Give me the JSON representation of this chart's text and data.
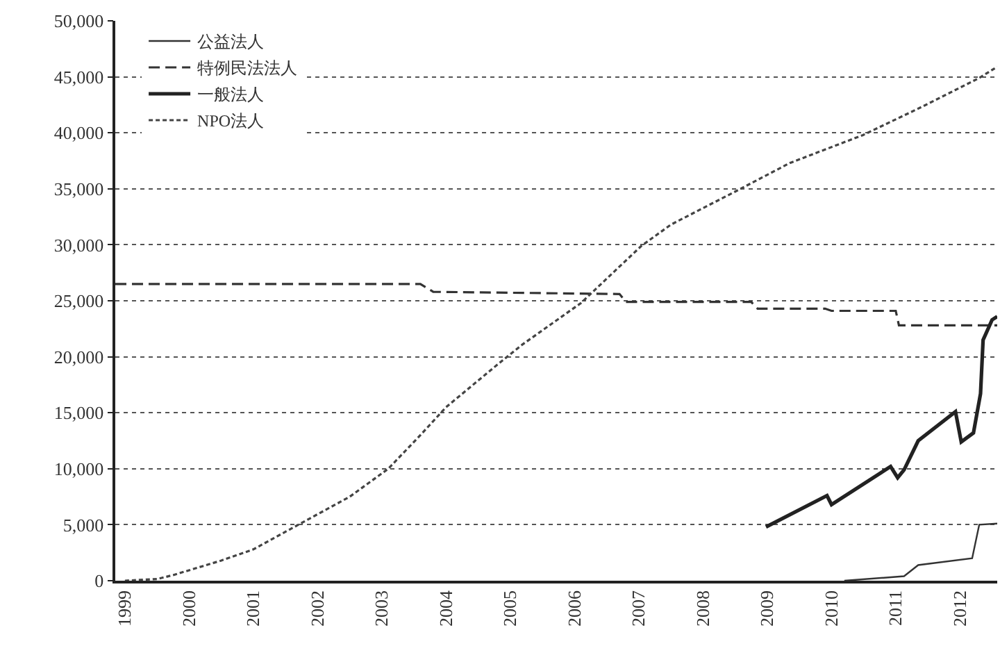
{
  "chart_data": {
    "type": "line",
    "xlim": [
      1998.85,
      2012.58
    ],
    "xticks": [
      1999,
      2000,
      2001,
      2002,
      2003,
      2004,
      2005,
      2006,
      2007,
      2008,
      2009,
      2010,
      2011,
      2012
    ],
    "ylim": [
      0,
      50000
    ],
    "yticks": [
      {
        "value": 0,
        "label": "0"
      },
      {
        "value": 5000,
        "label": "5,000"
      },
      {
        "value": 10000,
        "label": "10,000"
      },
      {
        "value": 15000,
        "label": "15,000"
      },
      {
        "value": 20000,
        "label": "20,000"
      },
      {
        "value": 25000,
        "label": "25,000"
      },
      {
        "value": 30000,
        "label": "30,000"
      },
      {
        "value": 35000,
        "label": "35,000"
      },
      {
        "value": 40000,
        "label": "40,000"
      },
      {
        "value": 45000,
        "label": "45,000"
      },
      {
        "value": 50000,
        "label": "50,000"
      }
    ],
    "grid": "y",
    "legend": "top left",
    "marker": "none",
    "series": [
      {
        "name": "公益法人",
        "color": "#333333",
        "line_style": "solid",
        "x": [
          2010.2,
          2011.13,
          2011.35,
          2012.19,
          2012.3,
          2012.58
        ],
        "values": [
          0,
          400,
          1400,
          2000,
          5000,
          5100
        ]
      },
      {
        "name": "特例民法法人",
        "color": "#333333",
        "line_style": "dashed",
        "x": [
          1998.85,
          2003.6,
          2003.8,
          2006.7,
          2006.8,
          2008.75,
          2008.85,
          2009.9,
          2010.0,
          2011.0,
          2011.05,
          2012.58
        ],
        "values": [
          26500,
          26500,
          25800,
          25600,
          24900,
          24900,
          24300,
          24300,
          24100,
          24100,
          22800,
          22800
        ]
      },
      {
        "name": "一般法人",
        "color": "#222222",
        "line_style": "solid",
        "x": [
          2008.98,
          2009.93,
          2010.0,
          2010.92,
          2011.03,
          2011.13,
          2011.35,
          2011.93,
          2012.02,
          2012.21,
          2012.32,
          2012.36,
          2012.5,
          2012.58
        ],
        "values": [
          4800,
          7600,
          6800,
          10200,
          9200,
          9900,
          12500,
          15100,
          12400,
          13200,
          16700,
          21500,
          23300,
          23600
        ]
      },
      {
        "name": "NPO法人",
        "color": "#444444",
        "line_style": "dotted",
        "x": [
          1999.0,
          1999.5,
          1999.75,
          2000.5,
          2001.0,
          2001.7,
          2002.5,
          2003.1,
          2003.6,
          2004.0,
          2004.82,
          2005.19,
          2006.1,
          2007.04,
          2007.5,
          2008.55,
          2009.35,
          2010.49,
          2011.4,
          2012.3,
          2012.58
        ],
        "values": [
          0,
          150,
          500,
          1800,
          2800,
          5000,
          7500,
          10000,
          13000,
          15500,
          19400,
          21100,
          24800,
          29900,
          31800,
          34900,
          37300,
          39800,
          42300,
          44900,
          45900
        ]
      }
    ]
  }
}
